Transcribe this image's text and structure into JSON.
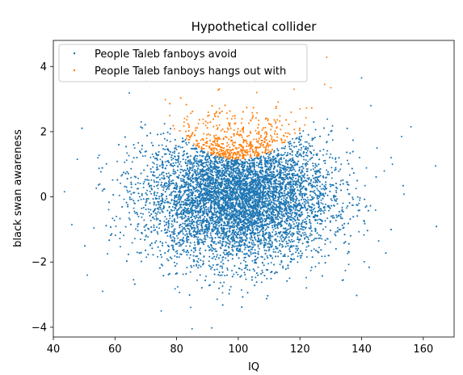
{
  "chart_data": {
    "type": "scatter",
    "title": "Hypothetical collider",
    "xlabel": "IQ",
    "ylabel": "black swan awareness",
    "xlim": [
      40,
      170
    ],
    "ylim": [
      -4.3,
      4.8
    ],
    "xticks": [
      40,
      60,
      80,
      100,
      120,
      140,
      160
    ],
    "yticks": [
      -4,
      -2,
      0,
      2,
      4
    ],
    "grid": false,
    "legend_position": "upper-left",
    "series": [
      {
        "name": "People Taleb fanboys avoid",
        "color": "#1f77b4",
        "marker": "point",
        "description_points": "~9000 points, bivariate normal: IQ mean 100 sd 15, awareness mean 0 sd 1, excluding region where awareness > 1.2 + 0.0025*(IQ-100)^2 roughly",
        "sample_points": [
          {
            "x": 164,
            "y": 0.95
          },
          {
            "x": 156,
            "y": 2.15
          },
          {
            "x": 153,
            "y": 1.85
          },
          {
            "x": 150,
            "y": 1.0
          },
          {
            "x": 145,
            "y": 1.5
          },
          {
            "x": 140,
            "y": 3.65
          },
          {
            "x": 143,
            "y": 2.8
          },
          {
            "x": 46,
            "y": -0.85
          },
          {
            "x": 51,
            "y": -2.4
          },
          {
            "x": 56,
            "y": -2.9
          },
          {
            "x": 85,
            "y": -4.05
          },
          {
            "x": 75,
            "y": -3.5
          }
        ]
      },
      {
        "name": "People Taleb fanboys hangs out with",
        "color": "#ff7f0e",
        "marker": "point",
        "description_points": "~1000 points, same distribution, selected region above a U-shaped curve centered at IQ 100, awareness ~1.1",
        "sample_points": [
          {
            "x": 128,
            "y": 3.45
          },
          {
            "x": 130,
            "y": 3.35
          },
          {
            "x": 106,
            "y": 3.2
          },
          {
            "x": 84,
            "y": 2.2
          },
          {
            "x": 120,
            "y": 2.7
          }
        ]
      }
    ]
  }
}
